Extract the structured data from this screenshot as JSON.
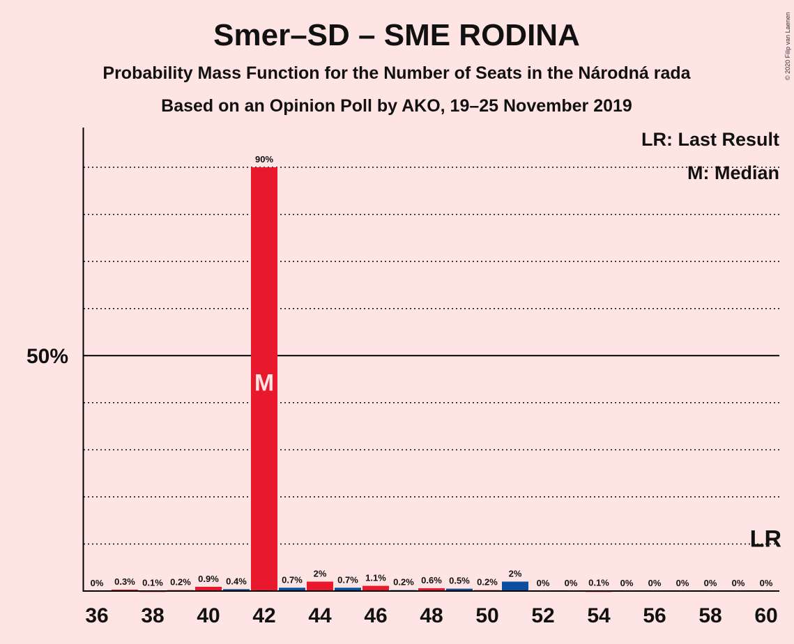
{
  "chart_data": {
    "type": "bar",
    "title": "Smer–SD – SME RODINA",
    "subtitle1": "Probability Mass Function for the Number of Seats in the Národná rada",
    "subtitle2": "Based on an Opinion Poll by AKO, 19–25 November 2019",
    "copyright": "© 2020 Filip van Laenen",
    "ytick_label": "50%",
    "ylim": [
      0,
      100
    ],
    "grid_percent": [
      10,
      20,
      30,
      40,
      60,
      70,
      80,
      90
    ],
    "majority_line_percent": 50,
    "legend": [
      "LR: Last Result",
      "M: Median"
    ],
    "median_marker": "M",
    "last_result_marker": "LR",
    "median_seat": 42,
    "last_result_seat": 60,
    "x": [
      36,
      37,
      38,
      39,
      40,
      41,
      42,
      43,
      44,
      45,
      46,
      47,
      48,
      49,
      50,
      51,
      52,
      53,
      54,
      55,
      56,
      57,
      58,
      59,
      60
    ],
    "values": [
      0,
      0.3,
      0.1,
      0.2,
      0.9,
      0.4,
      90,
      0.7,
      2,
      0.7,
      1.1,
      0.2,
      0.6,
      0.5,
      0.2,
      2,
      0,
      0,
      0.1,
      0,
      0,
      0,
      0,
      0,
      0
    ],
    "labels": [
      "0%",
      "0.3%",
      "0.1%",
      "0.2%",
      "0.9%",
      "0.4%",
      "90%",
      "0.7%",
      "2%",
      "0.7%",
      "1.1%",
      "0.2%",
      "0.6%",
      "0.5%",
      "0.2%",
      "2%",
      "0%",
      "0%",
      "0.1%",
      "0%",
      "0%",
      "0%",
      "0%",
      "0%",
      "0%"
    ],
    "bar_colors": [
      "#e8192c",
      "#e8192c",
      "#e8192c",
      "#e8192c",
      "#e8192c",
      "#0a4fa0",
      "#e8192c",
      "#0a4fa0",
      "#e8192c",
      "#0a4fa0",
      "#e8192c",
      "#0a4fa0",
      "#e8192c",
      "#0a4fa0",
      "#e8192c",
      "#0a4fa0",
      "#e8192c",
      "#0a4fa0",
      "#e8192c",
      "#0a4fa0",
      "#e8192c",
      "#0a4fa0",
      "#e8192c",
      "#0a4fa0",
      "#e8192c"
    ],
    "xtick_labels": [
      "36",
      "38",
      "40",
      "42",
      "44",
      "46",
      "48",
      "50",
      "52",
      "54",
      "56",
      "58",
      "60"
    ]
  }
}
